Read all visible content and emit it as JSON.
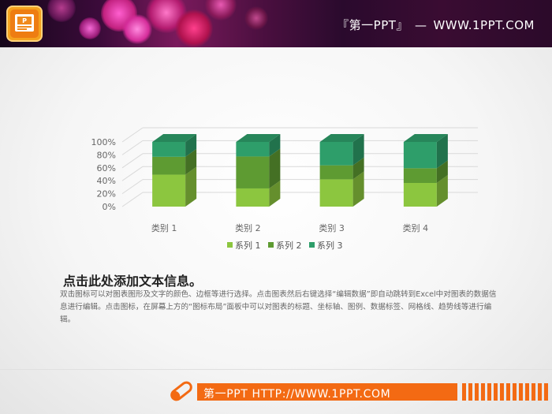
{
  "header": {
    "brand_open": "『第一PPT』",
    "dash": "—",
    "site": "WWW.1PPT.COM"
  },
  "icons": {
    "header_logo": "powerpoint-icon",
    "footer_logo": "pencil-eraser-icon"
  },
  "colors": {
    "series1": "#8cc63f",
    "series2": "#5e9b32",
    "series3": "#2e9e6a",
    "accent": "#f36a13"
  },
  "chart_data": {
    "type": "bar",
    "stacked": true,
    "percent": true,
    "three_d": true,
    "categories": [
      "类别 1",
      "类别 2",
      "类别 3",
      "类别 4"
    ],
    "series": [
      {
        "name": "系列 1",
        "values": [
          4.3,
          2.5,
          3.5,
          4.5
        ]
      },
      {
        "name": "系列 2",
        "values": [
          2.4,
          4.4,
          1.8,
          2.8
        ]
      },
      {
        "name": "系列 3",
        "values": [
          2.0,
          2.0,
          3.0,
          5.0
        ]
      }
    ],
    "ylim": [
      0,
      100
    ],
    "yticks": [
      "0%",
      "20%",
      "40%",
      "60%",
      "80%",
      "100%"
    ],
    "grid": true,
    "legend_position": "bottom"
  },
  "text": {
    "heading": "点击此处添加文本信息。",
    "body": "双击图标可以对图表图形及文字的颜色、边框等进行选择。点击图表然后右键选择“编辑数据”即自动跳转到Excel中对图表的数据信息进行编辑。点击图标，在屏幕上方的“图标布局”面板中可以对图表的标题、坐标轴、图例、数据标签、网格线、趋势线等进行编辑。"
  },
  "footer": {
    "text": "第一PPT HTTP://WWW.1PPT.COM"
  }
}
